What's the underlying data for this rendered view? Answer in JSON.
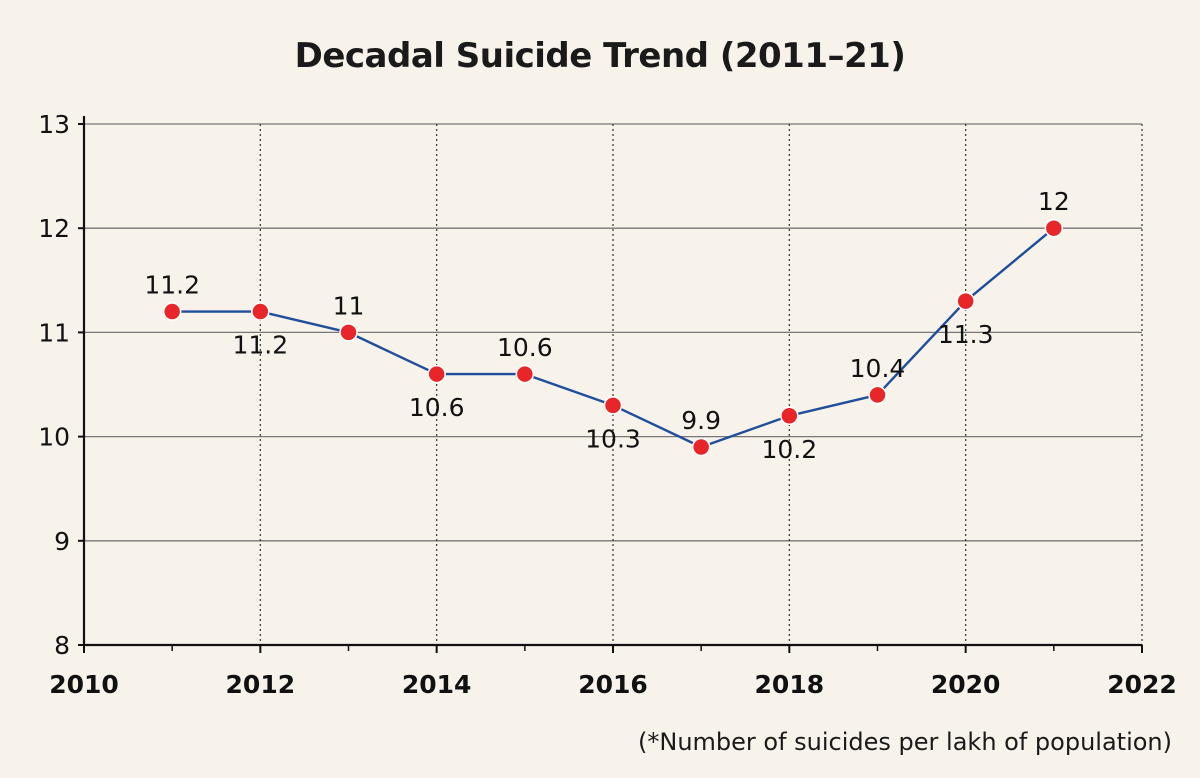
{
  "chart_data": {
    "type": "line",
    "title": "Decadal Suicide Trend (2011–21)",
    "note": "(*Number of suicides per lakh of population)",
    "xlabel": "",
    "ylabel": "",
    "xlim": [
      2010,
      2022
    ],
    "ylim": [
      8,
      13
    ],
    "xticks": [
      "2010",
      "2012",
      "2014",
      "2016",
      "2018",
      "2020",
      "2022"
    ],
    "yticks": [
      "8",
      "9",
      "10",
      "11",
      "12",
      "13"
    ],
    "grid": true,
    "colors": {
      "line": "#1f4e9c",
      "marker": "#e8262a",
      "grid_major": "#777777",
      "background": "#f7f2ea"
    },
    "series": [
      {
        "x": [
          2011,
          2012,
          2013,
          2014,
          2015,
          2016,
          2017,
          2018,
          2019,
          2020,
          2021
        ],
        "values": [
          11.2,
          11.2,
          11,
          10.6,
          10.6,
          10.3,
          9.9,
          10.2,
          10.4,
          11.3,
          12
        ],
        "labels": [
          "11.2",
          "11.2",
          "11",
          "10.6",
          "10.6",
          "10.3",
          "9.9",
          "10.2",
          "10.4",
          "11.3",
          "12"
        ],
        "label_positions": [
          "above",
          "below",
          "above",
          "below",
          "above",
          "below",
          "above",
          "below",
          "above",
          "below",
          "above"
        ]
      }
    ]
  }
}
